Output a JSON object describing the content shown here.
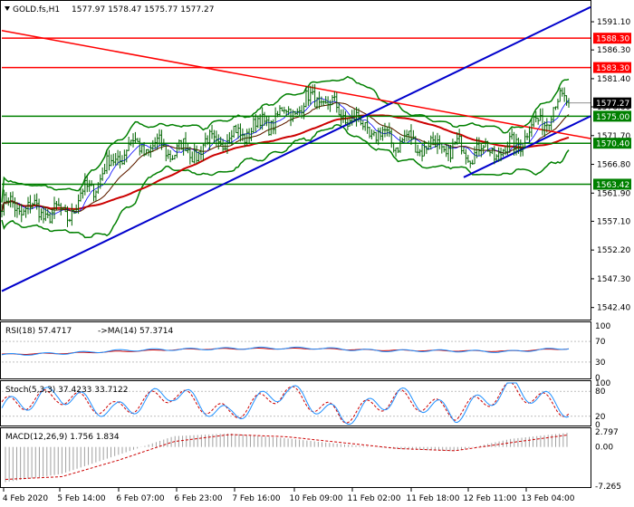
{
  "header": {
    "symbol_label": "GOLD.fs,H1",
    "ohlc": "1577.97 1578.47 1575.77 1577.27",
    "collapse_arrow": "triangle-down-icon"
  },
  "colors": {
    "price_bar": "#006400",
    "bollinger": "#008000",
    "trendline_blue": "#0000cc",
    "level_red": "#ff0000",
    "level_green": "#008000",
    "ma_red": "#cc0000",
    "ma_blue": "#0000ff",
    "rsi_line": "#1e90ff",
    "rsi_ma": "#cc0000",
    "stoch_main": "#1e90ff",
    "stoch_signal": "#cc0000",
    "macd_hist": "#a0a0a0",
    "macd_signal": "#cc0000"
  },
  "price_axis": {
    "ticks": [
      "1591.10",
      "1586.30",
      "1581.40",
      "1576.60",
      "1571.70",
      "1566.80",
      "1561.90",
      "1557.10",
      "1552.20",
      "1547.30",
      "1542.40"
    ],
    "current_price_tag": "1577.27"
  },
  "levels": [
    {
      "label": "1588.30",
      "value": 1588.3,
      "color": "red"
    },
    {
      "label": "1583.30",
      "value": 1583.3,
      "color": "red"
    },
    {
      "label": "1575.00",
      "value": 1575.0,
      "color": "green"
    },
    {
      "label": "1570.40",
      "value": 1570.4,
      "color": "green"
    },
    {
      "label": "1563.42",
      "value": 1563.42,
      "color": "green"
    }
  ],
  "time_axis": {
    "labels": [
      "4 Feb 2020",
      "5 Feb 14:00",
      "6 Feb 07:00",
      "6 Feb 23:00",
      "7 Feb 16:00",
      "10 Feb 09:00",
      "11 Feb 02:00",
      "11 Feb 18:00",
      "12 Feb 11:00",
      "13 Feb 04:00"
    ]
  },
  "rsi": {
    "label": "RSI(18) 57.4717",
    "ma_label": "->MA(14) 57.3714",
    "ticks": [
      "100",
      "70",
      "30",
      "0"
    ]
  },
  "stoch": {
    "label": "Stoch(5,3,3) 37.4233 33.7122",
    "ticks": [
      "100",
      "80",
      "20",
      "0"
    ]
  },
  "macd": {
    "label": "MACD(12,26,9) 1.756 1.834",
    "ticks": [
      "2.797",
      "0.00",
      "-7.265"
    ]
  },
  "chart_data": [
    {
      "type": "line",
      "description_of": "main price panel",
      "ylim": [
        1540.5,
        1594.5
      ],
      "x": [
        "4 Feb 2020",
        "5 Feb 14:00",
        "6 Feb 07:00",
        "6 Feb 23:00",
        "7 Feb 16:00",
        "10 Feb 09:00",
        "11 Feb 02:00",
        "11 Feb 18:00",
        "12 Feb 11:00",
        "13 Feb 04:00"
      ],
      "series": [
        {
          "values": [
            1560.0,
            1558.0,
            1570.0,
            1569.0,
            1573.0,
            1578.0,
            1571.5,
            1569.5,
            1569.0,
            1578.5
          ]
        }
      ],
      "horizontal_levels": [
        1588.3,
        1583.3,
        1575.0,
        1570.4,
        1563.42
      ],
      "last_price": 1577.27
    },
    {
      "type": "line",
      "description_of": "RSI panel",
      "ylim": [
        0,
        100
      ],
      "series": [
        {
          "values": [
            44,
            47,
            53,
            55,
            57,
            57,
            52,
            52,
            50,
            57
          ]
        },
        {
          "values": [
            45,
            47,
            51,
            55,
            56,
            56,
            53,
            52,
            51,
            56
          ]
        }
      ]
    },
    {
      "type": "line",
      "description_of": "Stochastic panel",
      "ylim": [
        0,
        100
      ],
      "series": [
        {
          "values": [
            40,
            75,
            30,
            80,
            20,
            85,
            15,
            70,
            25,
            90,
            37
          ]
        },
        {
          "values": [
            45,
            70,
            35,
            75,
            25,
            80,
            20,
            65,
            30,
            85,
            34
          ]
        }
      ]
    },
    {
      "type": "bar",
      "description_of": "MACD panel",
      "ylim": [
        -7.265,
        2.797
      ],
      "values": [
        -6.5,
        -5.0,
        -1.5,
        2.0,
        2.5,
        1.6,
        0.5,
        -0.4,
        -0.8,
        1.5,
        2.6
      ],
      "signal": [
        -6.0,
        -5.5,
        -2.5,
        1.0,
        2.3,
        1.9,
        0.8,
        -0.3,
        -0.7,
        0.8,
        2.2
      ]
    }
  ]
}
